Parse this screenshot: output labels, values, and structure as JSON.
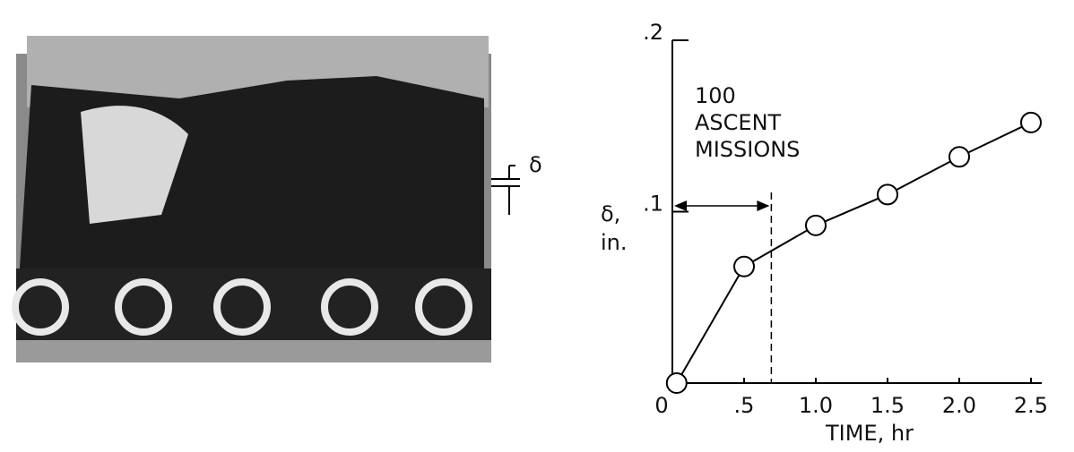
{
  "photo": {
    "label": "δ"
  },
  "chart_data": {
    "type": "line",
    "x": [
      0.03,
      0.5,
      1.0,
      1.5,
      2.0,
      2.5
    ],
    "values": [
      0,
      0.068,
      0.092,
      0.11,
      0.132,
      0.152
    ],
    "color": "#000000",
    "xlim": [
      0,
      2.5
    ],
    "ylim": [
      0,
      0.2
    ],
    "xticks": [
      0,
      {
        "value": 0.5,
        "label": ".5"
      },
      {
        "value": 1,
        "label": "1.0"
      },
      1.5,
      {
        "value": 2,
        "label": "2.0"
      },
      2.5
    ],
    "yticks": [
      {
        "value": 0.1,
        "label": ".1"
      },
      {
        "value": 0.2,
        "label": ".2"
      }
    ],
    "xlabel": "TIME, hr",
    "ylabel": [
      "δ,",
      "in."
    ],
    "annotation": {
      "text": [
        "100",
        "ASCENT",
        "MISSIONS"
      ],
      "x": 0.69
    }
  }
}
